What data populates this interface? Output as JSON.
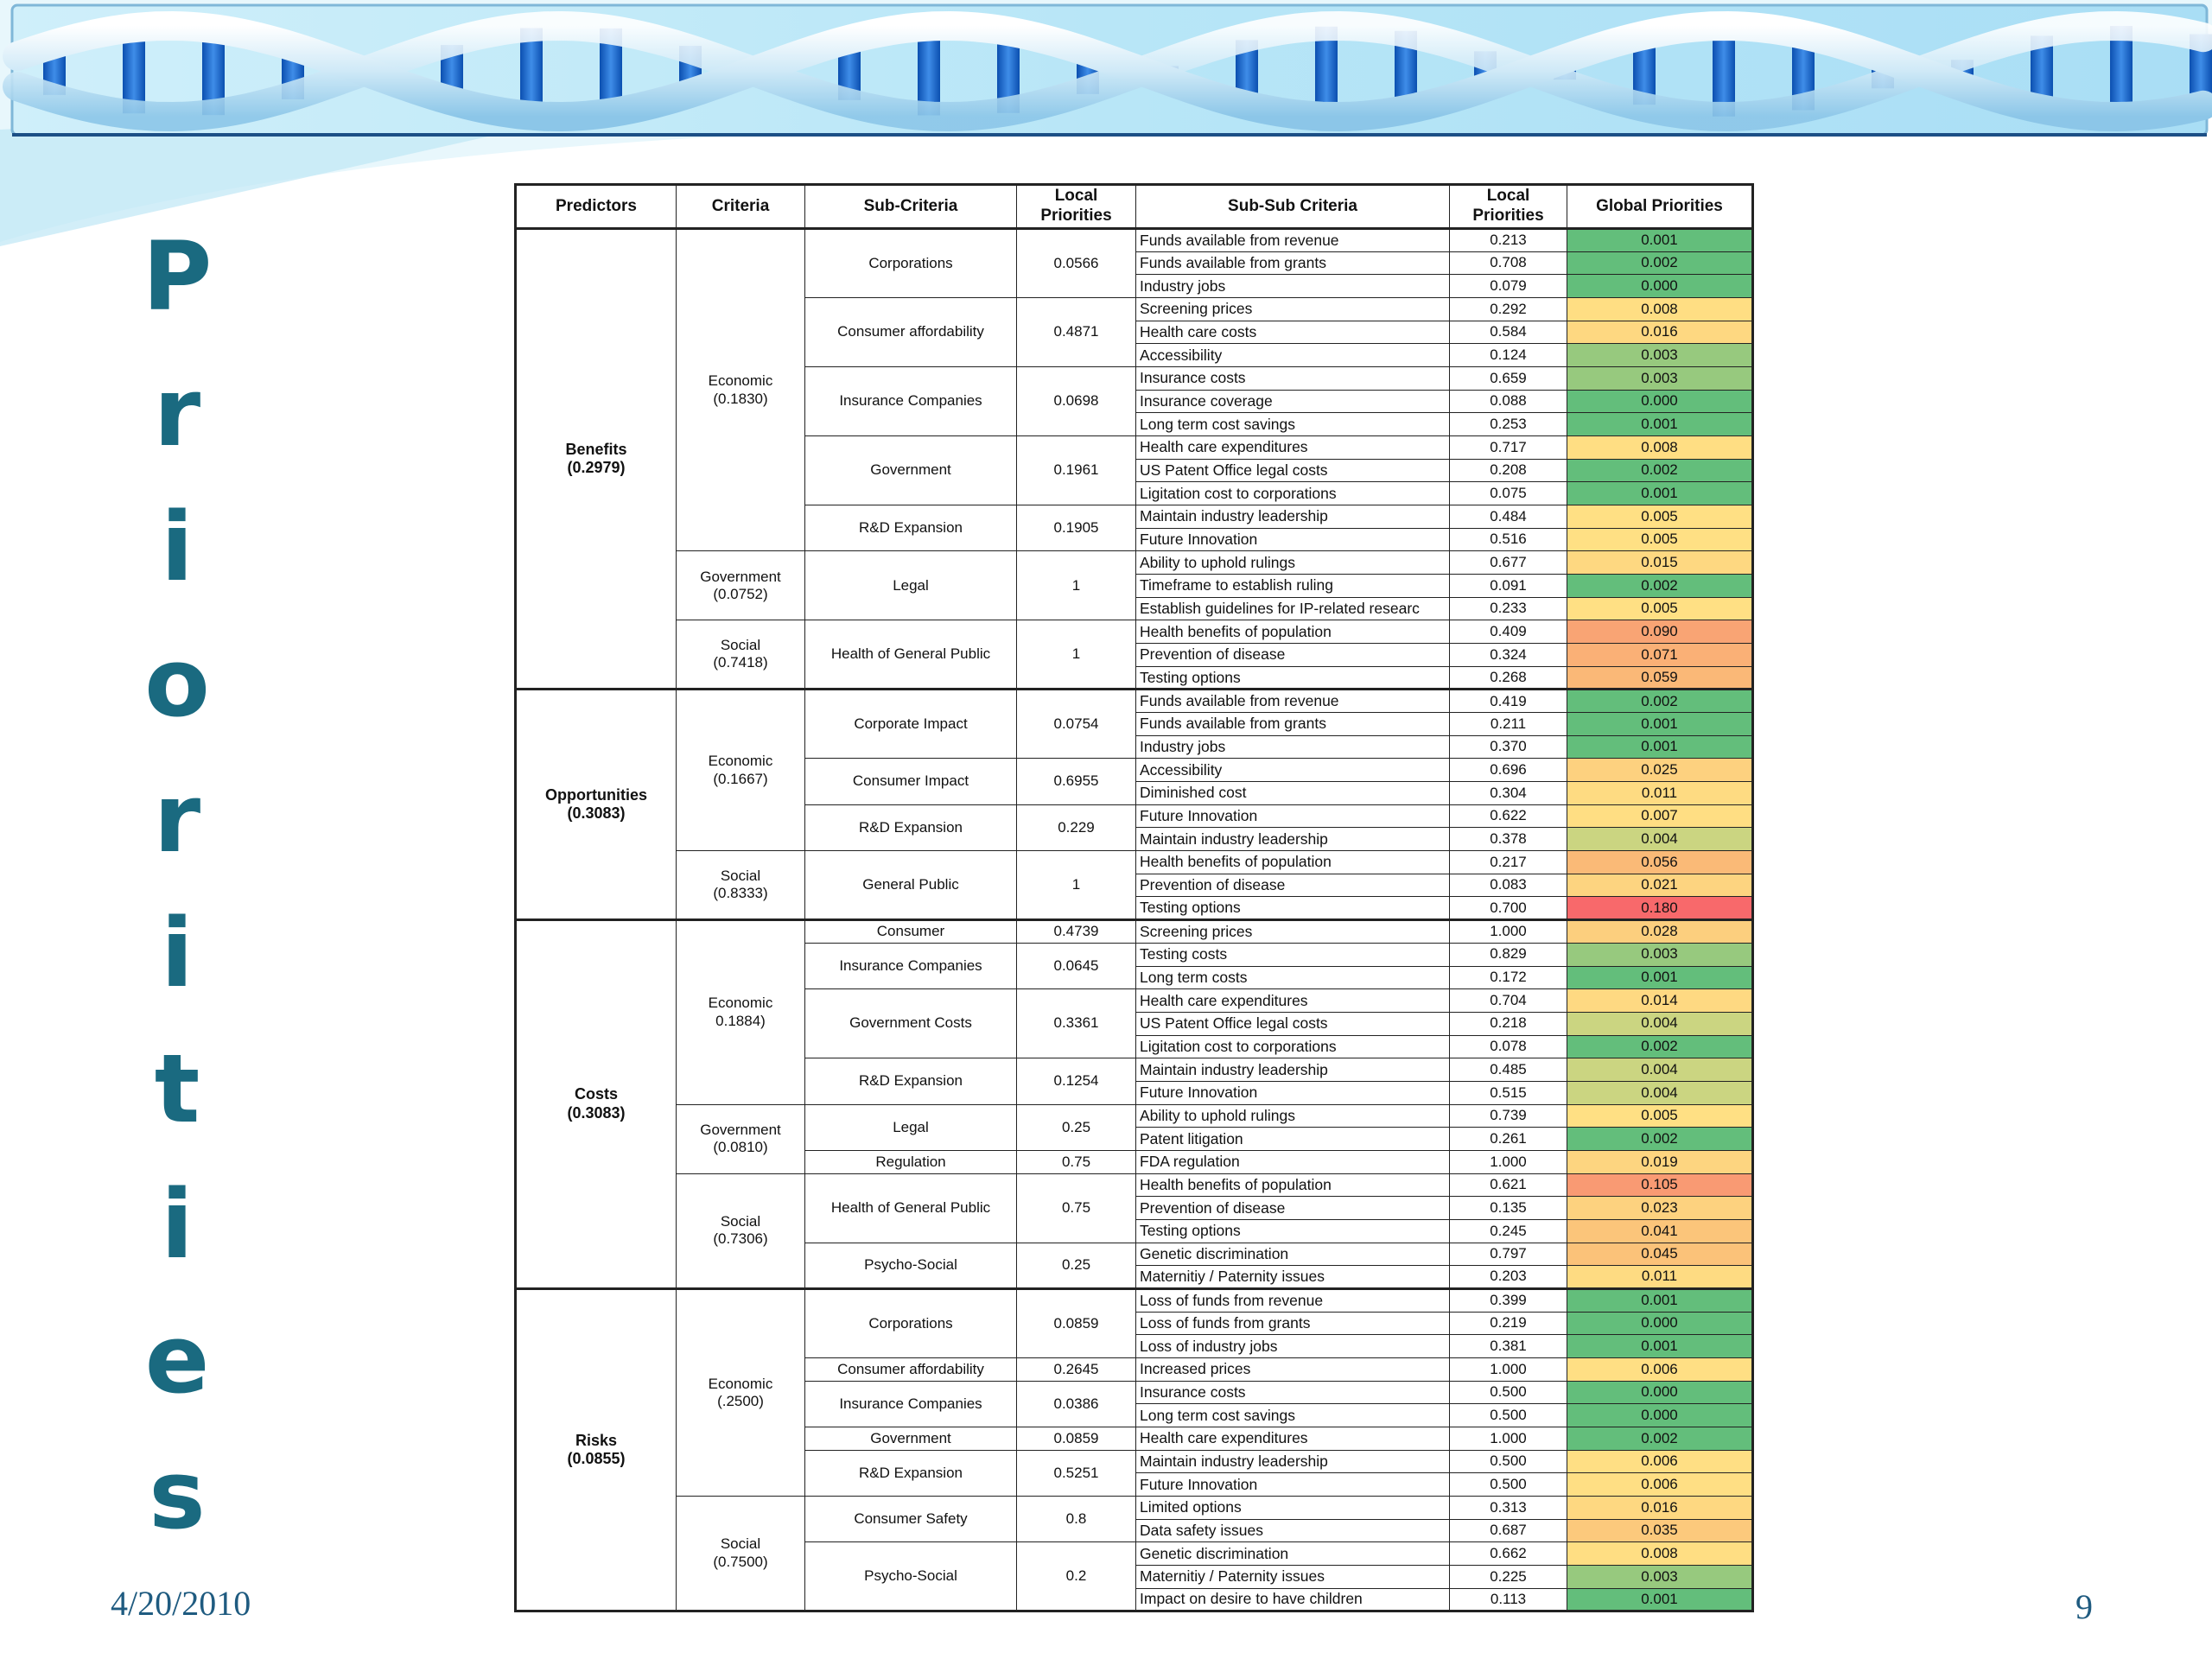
{
  "slide": {
    "date": "4/20/2010",
    "page_number": "9",
    "vertical_title": "Priorities"
  },
  "table": {
    "headers": {
      "predictors": "Predictors",
      "criteria": "Criteria",
      "sub_criteria": "Sub-Criteria",
      "local_priorities_sub": "Local Priorities",
      "sub_sub_criteria": "Sub-Sub Criteria",
      "local_priorities_subsub": "Local Priorities",
      "global_priorities": "Global Priorities"
    },
    "groups": [
      {
        "predictor": "Benefits",
        "predictor_weight": "(0.2979)",
        "criteria": [
          {
            "name": "Economic",
            "weight": "(0.1830)",
            "subs": [
              {
                "name": "Corporations",
                "lp": "0.0566",
                "items": [
                  {
                    "name": "Funds available from revenue",
                    "lp": "0.213",
                    "gp": "0.001"
                  },
                  {
                    "name": "Funds available from grants",
                    "lp": "0.708",
                    "gp": "0.002"
                  },
                  {
                    "name": "Industry jobs",
                    "lp": "0.079",
                    "gp": "0.000"
                  }
                ]
              },
              {
                "name": "Consumer affordability",
                "lp": "0.4871",
                "items": [
                  {
                    "name": "Screening prices",
                    "lp": "0.292",
                    "gp": "0.008"
                  },
                  {
                    "name": "Health care costs",
                    "lp": "0.584",
                    "gp": "0.016"
                  },
                  {
                    "name": "Accessibility",
                    "lp": "0.124",
                    "gp": "0.003"
                  }
                ]
              },
              {
                "name": "Insurance Companies",
                "lp": "0.0698",
                "items": [
                  {
                    "name": "Insurance costs",
                    "lp": "0.659",
                    "gp": "0.003"
                  },
                  {
                    "name": "Insurance coverage",
                    "lp": "0.088",
                    "gp": "0.000"
                  },
                  {
                    "name": "Long term cost savings",
                    "lp": "0.253",
                    "gp": "0.001"
                  }
                ]
              },
              {
                "name": "Government",
                "lp": "0.1961",
                "items": [
                  {
                    "name": "Health care expenditures",
                    "lp": "0.717",
                    "gp": "0.008"
                  },
                  {
                    "name": "US Patent Office legal costs",
                    "lp": "0.208",
                    "gp": "0.002"
                  },
                  {
                    "name": "Ligitation cost to corporations",
                    "lp": "0.075",
                    "gp": "0.001"
                  }
                ]
              },
              {
                "name": "R&D Expansion",
                "lp": "0.1905",
                "items": [
                  {
                    "name": "Maintain industry leadership",
                    "lp": "0.484",
                    "gp": "0.005"
                  },
                  {
                    "name": "Future Innovation",
                    "lp": "0.516",
                    "gp": "0.005"
                  }
                ]
              }
            ]
          },
          {
            "name": "Government",
            "weight": "(0.0752)",
            "subs": [
              {
                "name": "Legal",
                "lp": "1",
                "items": [
                  {
                    "name": "Ability to uphold rulings",
                    "lp": "0.677",
                    "gp": "0.015"
                  },
                  {
                    "name": "Timeframe to establish ruling",
                    "lp": "0.091",
                    "gp": "0.002"
                  },
                  {
                    "name": "Establish guidelines for IP-related researc",
                    "lp": "0.233",
                    "gp": "0.005"
                  }
                ]
              }
            ]
          },
          {
            "name": "Social",
            "weight": "(0.7418)",
            "subs": [
              {
                "name": "Health of General Public",
                "lp": "1",
                "items": [
                  {
                    "name": "Health benefits of population",
                    "lp": "0.409",
                    "gp": "0.090"
                  },
                  {
                    "name": "Prevention of disease",
                    "lp": "0.324",
                    "gp": "0.071"
                  },
                  {
                    "name": "Testing options",
                    "lp": "0.268",
                    "gp": "0.059"
                  }
                ]
              }
            ]
          }
        ]
      },
      {
        "predictor": "Opportunities",
        "predictor_weight": "(0.3083)",
        "criteria": [
          {
            "name": "Economic",
            "weight": "(0.1667)",
            "subs": [
              {
                "name": "Corporate Impact",
                "lp": "0.0754",
                "items": [
                  {
                    "name": "Funds available from revenue",
                    "lp": "0.419",
                    "gp": "0.002"
                  },
                  {
                    "name": "Funds available from grants",
                    "lp": "0.211",
                    "gp": "0.001"
                  },
                  {
                    "name": "Industry jobs",
                    "lp": "0.370",
                    "gp": "0.001"
                  }
                ]
              },
              {
                "name": "Consumer Impact",
                "lp": "0.6955",
                "items": [
                  {
                    "name": "Accessibility",
                    "lp": "0.696",
                    "gp": "0.025"
                  },
                  {
                    "name": "Diminished cost",
                    "lp": "0.304",
                    "gp": "0.011"
                  }
                ]
              },
              {
                "name": "R&D Expansion",
                "lp": "0.229",
                "items": [
                  {
                    "name": "Future Innovation",
                    "lp": "0.622",
                    "gp": "0.007"
                  },
                  {
                    "name": "Maintain industry leadership",
                    "lp": "0.378",
                    "gp": "0.004"
                  }
                ]
              }
            ]
          },
          {
            "name": "Social",
            "weight": "(0.8333)",
            "subs": [
              {
                "name": "General Public",
                "lp": "1",
                "items": [
                  {
                    "name": "Health benefits of population",
                    "lp": "0.217",
                    "gp": "0.056"
                  },
                  {
                    "name": "Prevention of disease",
                    "lp": "0.083",
                    "gp": "0.021"
                  },
                  {
                    "name": "Testing options",
                    "lp": "0.700",
                    "gp": "0.180"
                  }
                ]
              }
            ]
          }
        ]
      },
      {
        "predictor": "Costs",
        "predictor_weight": "(0.3083)",
        "criteria": [
          {
            "name": "Economic",
            "weight": "0.1884)",
            "subs": [
              {
                "name": "Consumer",
                "lp": "0.4739",
                "items": [
                  {
                    "name": "Screening prices",
                    "lp": "1.000",
                    "gp": "0.028"
                  }
                ]
              },
              {
                "name": "Insurance Companies",
                "lp": "0.0645",
                "items": [
                  {
                    "name": "Testing costs",
                    "lp": "0.829",
                    "gp": "0.003"
                  },
                  {
                    "name": "Long term costs",
                    "lp": "0.172",
                    "gp": "0.001"
                  }
                ]
              },
              {
                "name": "Government Costs",
                "lp": "0.3361",
                "items": [
                  {
                    "name": "Health care expenditures",
                    "lp": "0.704",
                    "gp": "0.014"
                  },
                  {
                    "name": "US Patent Office legal costs",
                    "lp": "0.218",
                    "gp": "0.004"
                  },
                  {
                    "name": "Ligitation cost to corporations",
                    "lp": "0.078",
                    "gp": "0.002"
                  }
                ]
              },
              {
                "name": "R&D Expansion",
                "lp": "0.1254",
                "items": [
                  {
                    "name": "Maintain industry leadership",
                    "lp": "0.485",
                    "gp": "0.004"
                  },
                  {
                    "name": "Future Innovation",
                    "lp": "0.515",
                    "gp": "0.004"
                  }
                ]
              }
            ]
          },
          {
            "name": "Government",
            "weight": "(0.0810)",
            "subs": [
              {
                "name": "Legal",
                "lp": "0.25",
                "items": [
                  {
                    "name": "Ability to uphold rulings",
                    "lp": "0.739",
                    "gp": "0.005"
                  },
                  {
                    "name": "Patent litigation",
                    "lp": "0.261",
                    "gp": "0.002"
                  }
                ]
              },
              {
                "name": "Regulation",
                "lp": "0.75",
                "items": [
                  {
                    "name": "FDA regulation",
                    "lp": "1.000",
                    "gp": "0.019"
                  }
                ]
              }
            ]
          },
          {
            "name": "Social",
            "weight": "(0.7306)",
            "subs": [
              {
                "name": "Health of General Public",
                "lp": "0.75",
                "items": [
                  {
                    "name": "Health benefits of population",
                    "lp": "0.621",
                    "gp": "0.105"
                  },
                  {
                    "name": "Prevention of disease",
                    "lp": "0.135",
                    "gp": "0.023"
                  },
                  {
                    "name": "Testing options",
                    "lp": "0.245",
                    "gp": "0.041"
                  }
                ]
              },
              {
                "name": "Psycho-Social",
                "lp": "0.25",
                "items": [
                  {
                    "name": "Genetic discrimination",
                    "lp": "0.797",
                    "gp": "0.045"
                  },
                  {
                    "name": "Maternitiy / Paternity issues",
                    "lp": "0.203",
                    "gp": "0.011"
                  }
                ]
              }
            ]
          }
        ]
      },
      {
        "predictor": "Risks",
        "predictor_weight": "(0.0855)",
        "criteria": [
          {
            "name": "Economic",
            "weight": "(.2500)",
            "subs": [
              {
                "name": "Corporations",
                "lp": "0.0859",
                "items": [
                  {
                    "name": "Loss of funds from revenue",
                    "lp": "0.399",
                    "gp": "0.001"
                  },
                  {
                    "name": "Loss of funds from grants",
                    "lp": "0.219",
                    "gp": "0.000"
                  },
                  {
                    "name": "Loss of industry jobs",
                    "lp": "0.381",
                    "gp": "0.001"
                  }
                ]
              },
              {
                "name": "Consumer affordability",
                "lp": "0.2645",
                "items": [
                  {
                    "name": "Increased prices",
                    "lp": "1.000",
                    "gp": "0.006"
                  }
                ]
              },
              {
                "name": "Insurance Companies",
                "lp": "0.0386",
                "items": [
                  {
                    "name": "Insurance costs",
                    "lp": "0.500",
                    "gp": "0.000"
                  },
                  {
                    "name": "Long term cost savings",
                    "lp": "0.500",
                    "gp": "0.000"
                  }
                ]
              },
              {
                "name": "Government",
                "lp": "0.0859",
                "items": [
                  {
                    "name": "Health care expenditures",
                    "lp": "1.000",
                    "gp": "0.002"
                  }
                ]
              },
              {
                "name": "R&D Expansion",
                "lp": "0.5251",
                "items": [
                  {
                    "name": "Maintain industry leadership",
                    "lp": "0.500",
                    "gp": "0.006"
                  },
                  {
                    "name": "Future Innovation",
                    "lp": "0.500",
                    "gp": "0.006"
                  }
                ]
              }
            ]
          },
          {
            "name": "Social",
            "weight": "(0.7500)",
            "subs": [
              {
                "name": "Consumer Safety",
                "lp": "0.8",
                "items": [
                  {
                    "name": "Limited options",
                    "lp": "0.313",
                    "gp": "0.016"
                  },
                  {
                    "name": "Data safety issues",
                    "lp": "0.687",
                    "gp": "0.035"
                  }
                ]
              },
              {
                "name": "Psycho-Social",
                "lp": "0.2",
                "items": [
                  {
                    "name": "Genetic discrimination",
                    "lp": "0.662",
                    "gp": "0.008"
                  },
                  {
                    "name": "Maternitiy / Paternity issues",
                    "lp": "0.225",
                    "gp": "0.003"
                  },
                  {
                    "name": "Impact on desire to have children",
                    "lp": "0.113",
                    "gp": "0.001"
                  }
                ]
              }
            ]
          }
        ]
      }
    ]
  },
  "colors": {
    "title": "#1a6a80",
    "footer_text": "#1f5b80",
    "heat_green": "#63be7b",
    "heat_yellow": "#ffe084",
    "heat_red": "#f8696b"
  }
}
